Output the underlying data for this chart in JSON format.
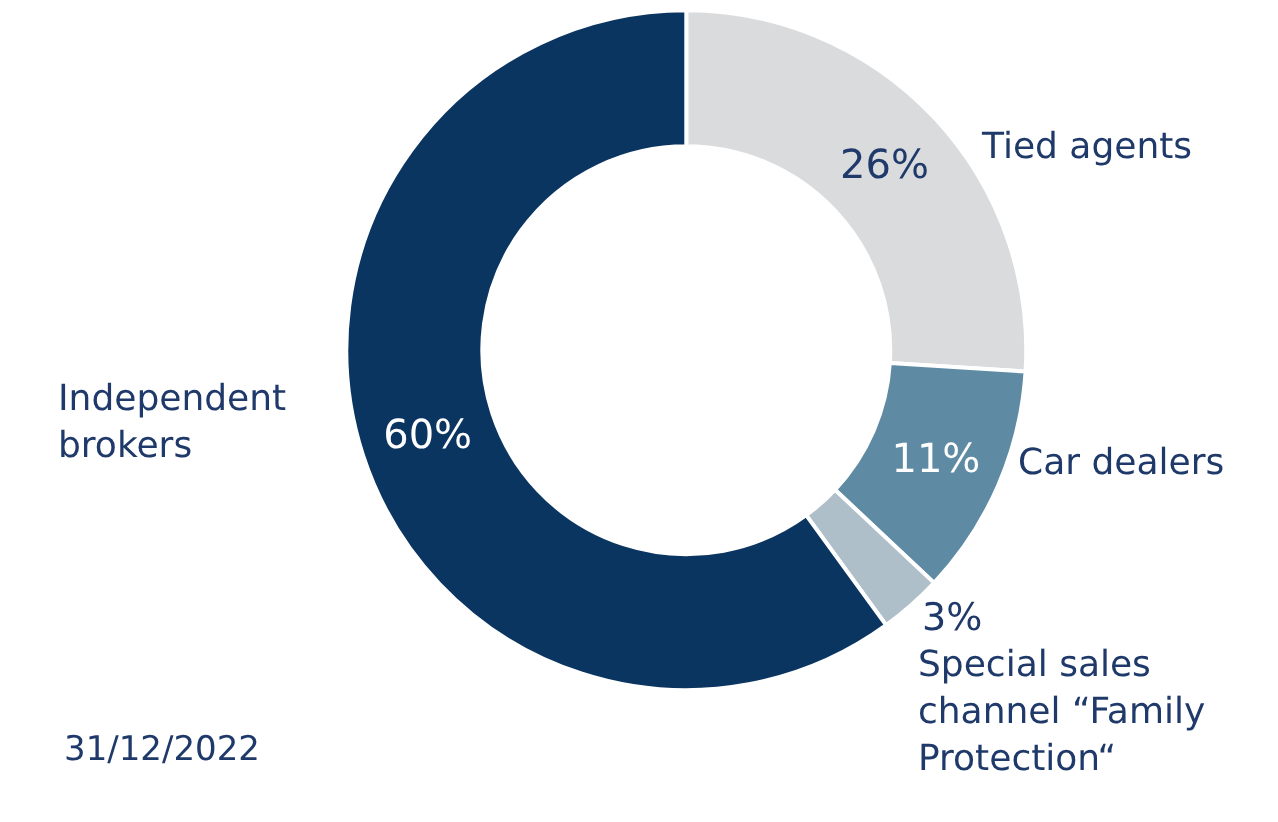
{
  "chart_data": {
    "type": "donut",
    "categories": [
      "Tied agents",
      "Car dealers",
      "Special sales channel “Family Protection“",
      "Independent brokers"
    ],
    "values": [
      26,
      11,
      3,
      60
    ],
    "colors": [
      "#d9dbdc",
      "#5e8aa3",
      "#aebfca",
      "#0a3560"
    ],
    "value_labels": [
      "26%",
      "11%",
      "3%",
      "60%"
    ],
    "annotations": [
      "31/12/2022"
    ]
  }
}
